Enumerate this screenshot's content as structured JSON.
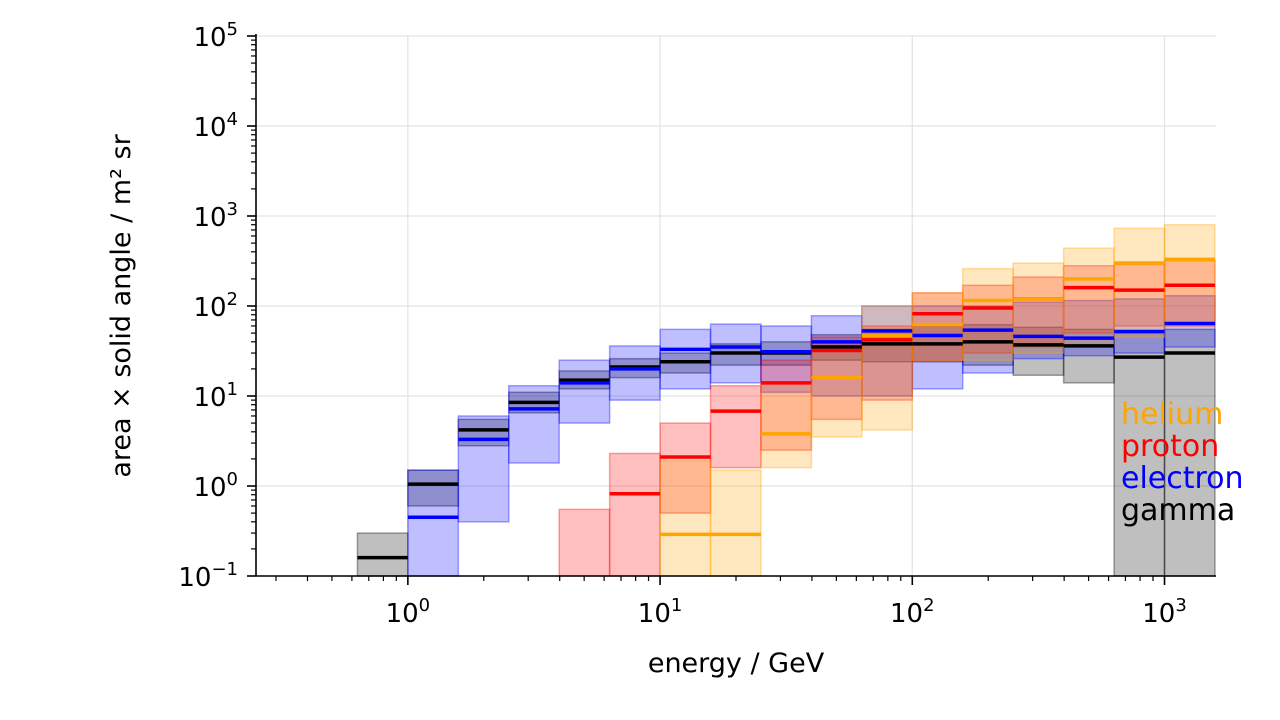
{
  "chart_data": {
    "type": "step histogram with uncertainty bands",
    "xlabel": "energy / GeV",
    "ylabel": "area × solid angle / m² sr",
    "x_scale": "log",
    "y_scale": "log",
    "xlim": [
      0.25,
      1600
    ],
    "ylim": [
      0.1,
      100000
    ],
    "grid": true,
    "legend_position": "lower-right",
    "x_ticks": [
      {
        "base": "10",
        "exp": "0"
      },
      {
        "base": "10",
        "exp": "1"
      },
      {
        "base": "10",
        "exp": "2"
      },
      {
        "base": "10",
        "exp": "3"
      }
    ],
    "y_ticks": [
      {
        "base": "10",
        "exp": "−1"
      },
      {
        "base": "10",
        "exp": "0"
      },
      {
        "base": "10",
        "exp": "1"
      },
      {
        "base": "10",
        "exp": "2"
      },
      {
        "base": "10",
        "exp": "3"
      },
      {
        "base": "10",
        "exp": "4"
      },
      {
        "base": "10",
        "exp": "5"
      }
    ],
    "bin_edges": [
      0.631,
      1.0,
      1.585,
      2.512,
      3.981,
      6.31,
      10.0,
      15.85,
      25.12,
      39.81,
      63.1,
      100.0,
      158.5,
      251.2,
      398.1,
      631.0,
      1000.0,
      1585.0
    ],
    "series": [
      {
        "name": "gamma",
        "color": "#000000",
        "values": [
          0.16,
          1.05,
          4.2,
          8.5,
          15,
          21,
          24,
          30,
          30,
          35,
          38,
          38,
          40,
          37,
          36,
          27,
          30
        ],
        "lower": [
          0.1,
          0.6,
          2.8,
          6.5,
          12,
          16,
          18,
          22,
          22,
          25,
          24,
          24,
          22,
          17,
          14,
          null,
          null
        ],
        "upper": [
          0.3,
          1.5,
          5.5,
          11,
          19,
          26,
          30,
          38,
          40,
          48,
          55,
          60,
          62,
          58,
          55,
          50,
          55
        ]
      },
      {
        "name": "electron",
        "color": "#0000ff",
        "values": [
          null,
          0.45,
          3.3,
          7.2,
          14,
          20,
          33,
          35,
          31,
          40,
          53,
          47,
          54,
          46,
          44,
          52,
          64
        ],
        "lower": [
          null,
          0.1,
          0.4,
          1.8,
          5,
          9,
          12,
          14,
          11,
          10,
          10,
          12,
          18,
          26,
          28,
          30,
          35
        ],
        "upper": [
          null,
          1.5,
          6,
          13,
          25,
          36,
          55,
          63,
          60,
          78,
          100,
          100,
          100,
          110,
          115,
          120,
          130
        ]
      },
      {
        "name": "proton",
        "color": "#ff0000",
        "values": [
          null,
          null,
          null,
          null,
          null,
          0.82,
          2.1,
          6.8,
          14,
          32,
          42,
          82,
          95,
          120,
          160,
          150,
          170
        ],
        "lower": [
          null,
          null,
          null,
          null,
          0.1,
          0.1,
          0.5,
          1.6,
          2.5,
          5.5,
          9,
          25,
          30,
          35,
          50,
          60,
          60
        ],
        "upper": [
          null,
          null,
          null,
          null,
          0.55,
          2.3,
          5,
          13,
          25,
          45,
          60,
          140,
          170,
          210,
          280,
          290,
          320
        ]
      },
      {
        "name": "helium",
        "color": "#ffa500",
        "values": [
          null,
          null,
          null,
          null,
          null,
          null,
          0.29,
          0.29,
          3.8,
          16,
          47,
          62,
          115,
          120,
          200,
          300,
          330
        ],
        "lower": [
          null,
          null,
          null,
          null,
          null,
          null,
          0.1,
          0.1,
          1.6,
          3.5,
          4.2,
          25,
          25,
          30,
          35,
          45,
          60
        ],
        "upper": [
          null,
          null,
          null,
          null,
          null,
          null,
          1.9,
          1.5,
          14,
          35,
          100,
          140,
          260,
          300,
          440,
          730,
          800
        ]
      }
    ]
  }
}
